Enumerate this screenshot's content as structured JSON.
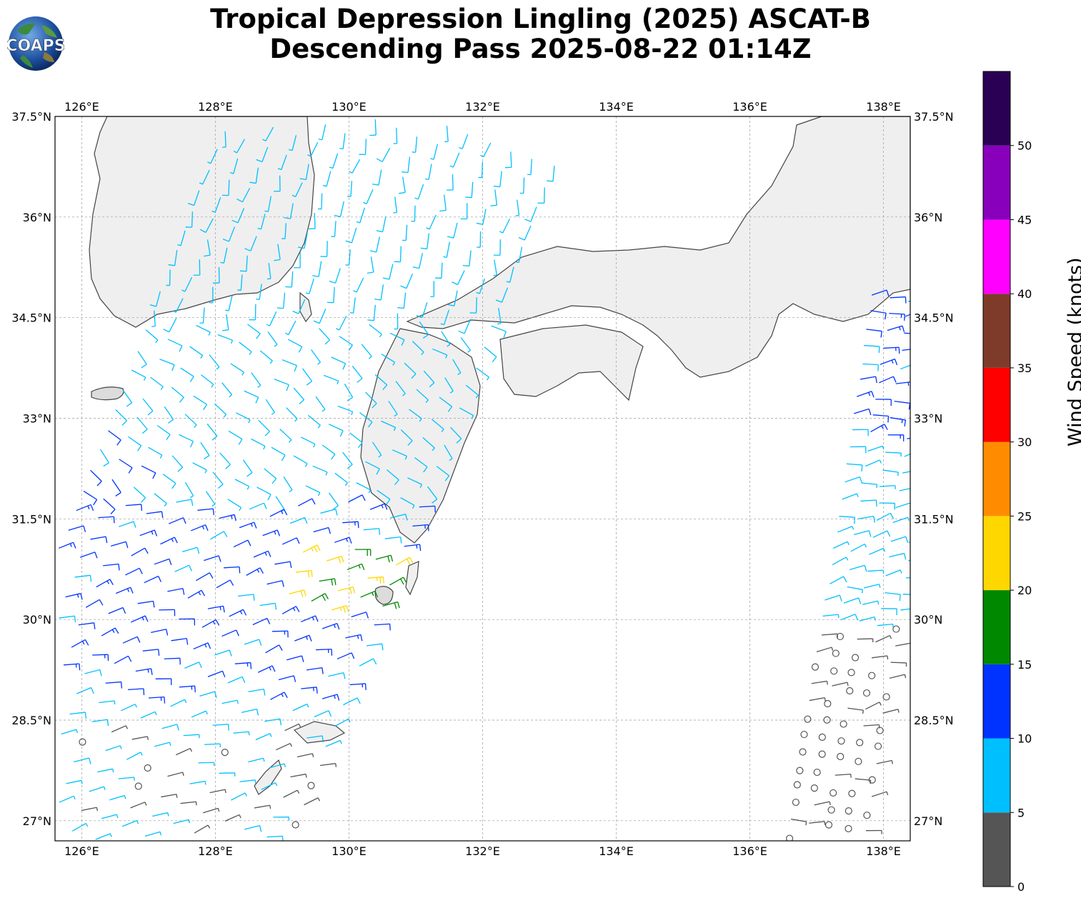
{
  "title": {
    "line1": "Tropical Depression Lingling (2025) ASCAT-B",
    "line2": "Descending Pass 2025-08-22 01:14Z"
  },
  "logo": {
    "text": "COAPS"
  },
  "map": {
    "lon_range": [
      125.6,
      138.4
    ],
    "lat_range": [
      26.7,
      37.5
    ],
    "lon_ticks": [
      "126°E",
      "128°E",
      "130°E",
      "132°E",
      "134°E",
      "136°E",
      "138°E"
    ],
    "lon_tick_values": [
      126,
      128,
      130,
      132,
      134,
      136,
      138
    ],
    "lat_ticks": [
      "37.5°N",
      "36°N",
      "34.5°N",
      "33°N",
      "31.5°N",
      "30°N",
      "28.5°N",
      "27°N"
    ],
    "lat_tick_values": [
      37.5,
      36,
      34.5,
      33,
      31.5,
      30,
      28.5,
      27
    ],
    "gridlines": true,
    "land_color": "#f0f0f0",
    "coast_color": "#444444"
  },
  "colorbar": {
    "label": "Wind Speed (knots)",
    "tick_labels": [
      "0",
      "5",
      "10",
      "15",
      "20",
      "25",
      "30",
      "35",
      "40",
      "45",
      "50"
    ],
    "bins": [
      {
        "min": 0,
        "max": 5,
        "color": "#555555"
      },
      {
        "min": 5,
        "max": 10,
        "color": "#00bfff"
      },
      {
        "min": 10,
        "max": 15,
        "color": "#0033ff"
      },
      {
        "min": 15,
        "max": 20,
        "color": "#008800"
      },
      {
        "min": 20,
        "max": 25,
        "color": "#ffd700"
      },
      {
        "min": 25,
        "max": 30,
        "color": "#ff8c00"
      },
      {
        "min": 30,
        "max": 35,
        "color": "#ff0000"
      },
      {
        "min": 35,
        "max": 40,
        "color": "#7f3b2a"
      },
      {
        "min": 40,
        "max": 45,
        "color": "#ff00ff"
      },
      {
        "min": 45,
        "max": 50,
        "color": "#8800bb"
      },
      {
        "min": 50,
        "max": 55,
        "color": "#2a0055"
      }
    ]
  }
}
